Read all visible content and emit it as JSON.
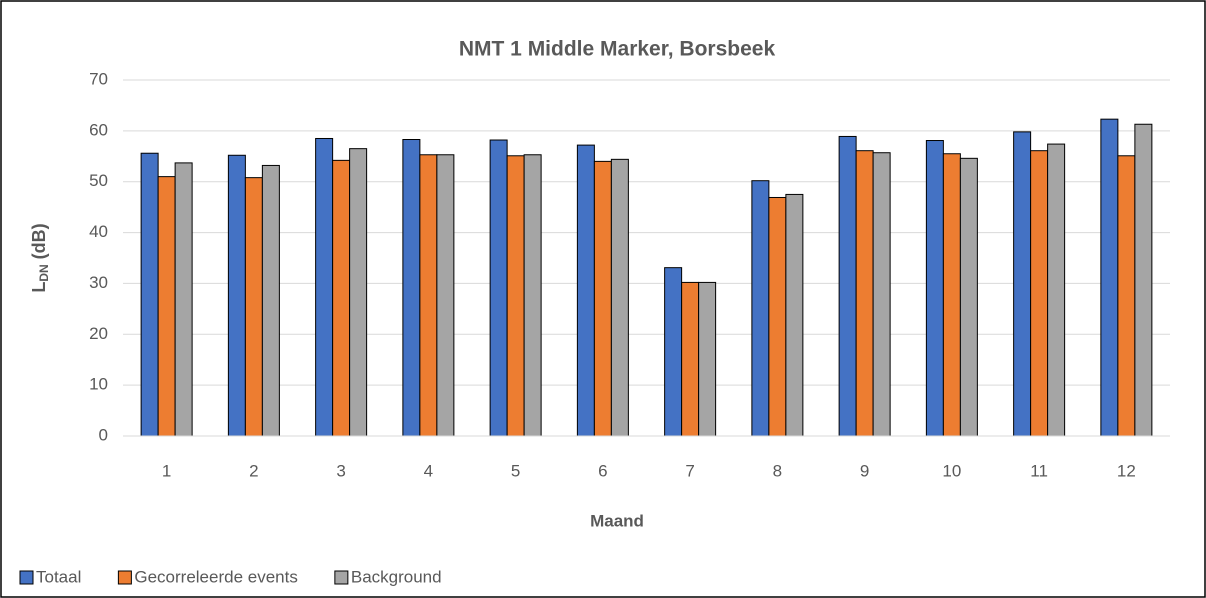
{
  "chart_data": {
    "type": "bar",
    "title": "NMT 1 Middle Marker, Borsbeek",
    "xlabel": "Maand",
    "ylabel": {
      "main": "L",
      "sub": "DN",
      "unit": "(dB)"
    },
    "categories": [
      "1",
      "2",
      "3",
      "4",
      "5",
      "6",
      "7",
      "8",
      "9",
      "10",
      "11",
      "12"
    ],
    "series": [
      {
        "name": "Totaal",
        "color": "#4472c4",
        "values": [
          55.6,
          55.2,
          58.5,
          58.3,
          58.2,
          57.2,
          33.1,
          50.2,
          58.9,
          58.1,
          59.8,
          62.3
        ]
      },
      {
        "name": "Gecorreleerde events",
        "color": "#ed7d31",
        "values": [
          51,
          50.8,
          54.2,
          55.3,
          55.1,
          54,
          30.2,
          46.9,
          56.1,
          55.5,
          56.1,
          55.1
        ]
      },
      {
        "name": "Background",
        "color": "#a5a5a5",
        "values": [
          53.7,
          53.2,
          56.5,
          55.3,
          55.3,
          54.4,
          30.2,
          47.5,
          55.7,
          54.6,
          57.4,
          61.3
        ]
      }
    ],
    "ylim": [
      0,
      70
    ],
    "yticks": [
      0,
      10,
      20,
      30,
      40,
      50,
      60,
      70
    ],
    "grid": true,
    "legend": "bottom"
  }
}
